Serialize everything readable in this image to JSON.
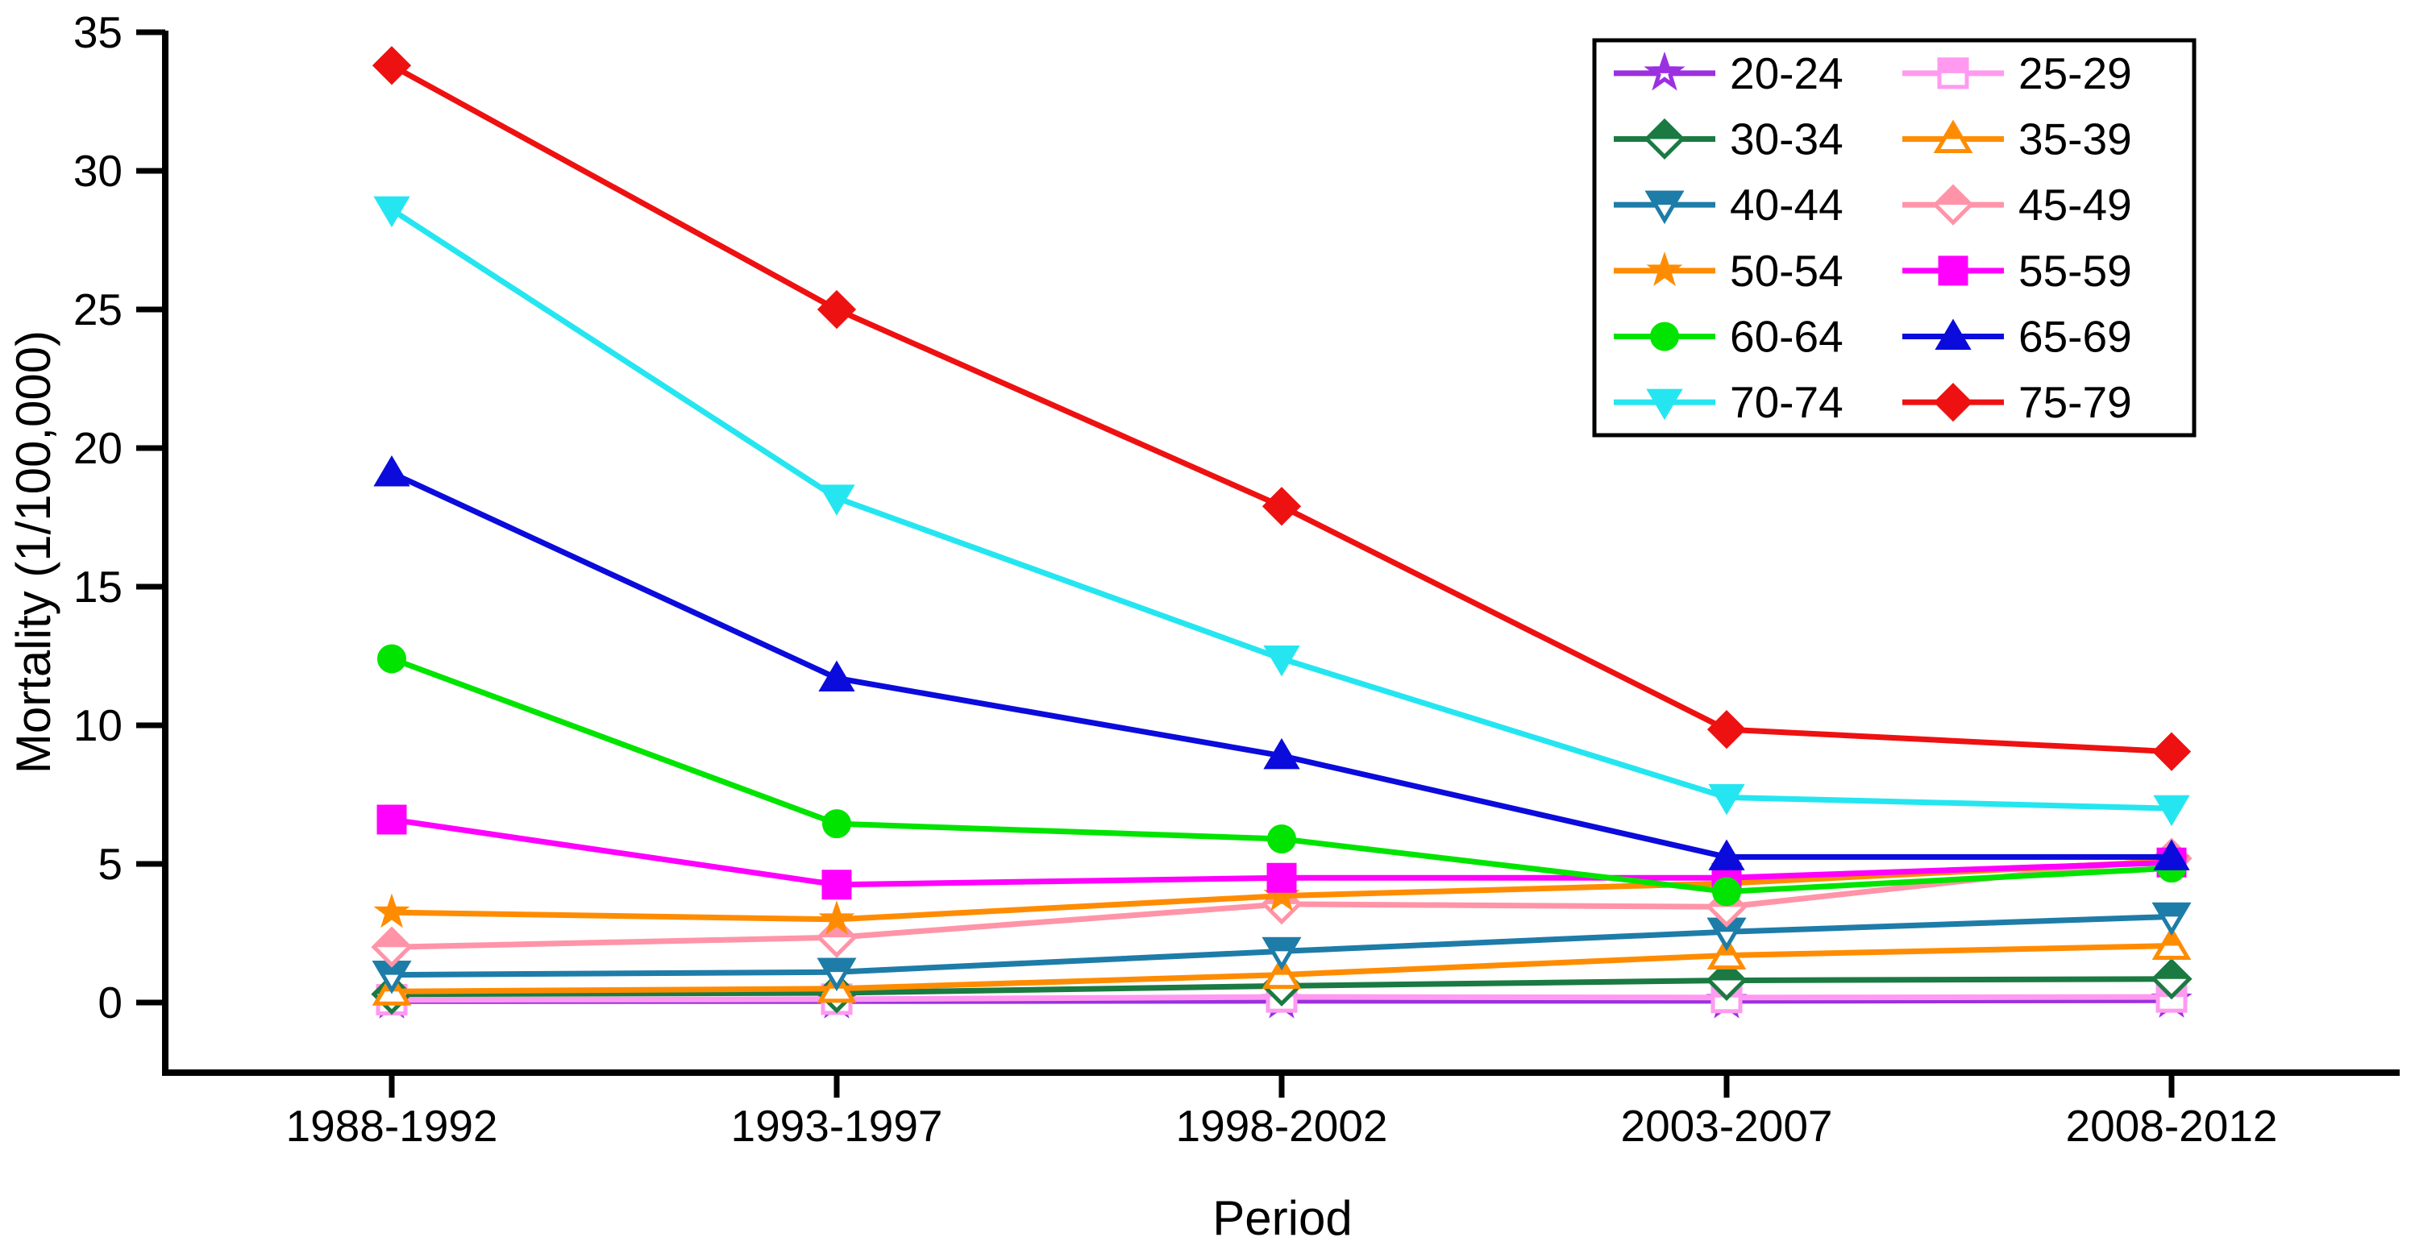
{
  "chart_data": {
    "type": "line",
    "title": "",
    "xlabel": "Period",
    "ylabel": "Mortality (1/100,000)",
    "categories": [
      "1988-1992",
      "1993-1997",
      "1998-2002",
      "2003-2007",
      "2008-2012"
    ],
    "yticks": [
      0,
      5,
      10,
      15,
      20,
      25,
      30,
      35
    ],
    "ylim": [
      -2.6,
      35.1
    ],
    "grid": false,
    "legend": {
      "position": "top-right-inside",
      "columns": 2,
      "border": true
    },
    "series": [
      {
        "name": "20-24",
        "color": "#9B30E0",
        "marker": "star",
        "marker_fill": "half",
        "values": [
          0.05,
          0.05,
          0.06,
          0.06,
          0.08
        ]
      },
      {
        "name": "25-29",
        "color": "#FF9AF0",
        "marker": "square",
        "marker_fill": "half",
        "values": [
          0.1,
          0.12,
          0.2,
          0.18,
          0.2
        ]
      },
      {
        "name": "30-34",
        "color": "#1A7A42",
        "marker": "diamond",
        "marker_fill": "half",
        "values": [
          0.3,
          0.35,
          0.6,
          0.8,
          0.85
        ]
      },
      {
        "name": "35-39",
        "color": "#FF8C00",
        "marker": "triangle-up",
        "marker_fill": "half",
        "values": [
          0.4,
          0.5,
          1.0,
          1.7,
          2.05
        ]
      },
      {
        "name": "40-44",
        "color": "#1E7CA8",
        "marker": "triangle-down",
        "marker_fill": "half",
        "values": [
          1.0,
          1.1,
          1.85,
          2.55,
          3.1
        ]
      },
      {
        "name": "45-49",
        "color": "#FF94A8",
        "marker": "diamond",
        "marker_fill": "half",
        "values": [
          2.0,
          2.35,
          3.55,
          3.45,
          5.2
        ]
      },
      {
        "name": "50-54",
        "color": "#FF8C00",
        "marker": "star",
        "marker_fill": "solid",
        "values": [
          3.25,
          3.0,
          3.85,
          4.3,
          5.1
        ]
      },
      {
        "name": "55-59",
        "color": "#FF00FF",
        "marker": "square",
        "marker_fill": "solid",
        "values": [
          6.6,
          4.25,
          4.5,
          4.5,
          5.05
        ]
      },
      {
        "name": "60-64",
        "color": "#00E400",
        "marker": "circle",
        "marker_fill": "solid",
        "values": [
          12.4,
          6.45,
          5.9,
          4.0,
          4.85
        ]
      },
      {
        "name": "65-69",
        "color": "#0B0BDC",
        "marker": "triangle-up",
        "marker_fill": "solid",
        "values": [
          19.1,
          11.7,
          8.9,
          5.25,
          5.25
        ]
      },
      {
        "name": "70-74",
        "color": "#25E6F0",
        "marker": "triangle-down",
        "marker_fill": "solid",
        "values": [
          28.6,
          18.2,
          12.4,
          7.4,
          7.0
        ]
      },
      {
        "name": "75-79",
        "color": "#EE1111",
        "marker": "diamond",
        "marker_fill": "solid",
        "values": [
          33.8,
          25.0,
          17.9,
          9.85,
          9.05
        ]
      }
    ]
  }
}
